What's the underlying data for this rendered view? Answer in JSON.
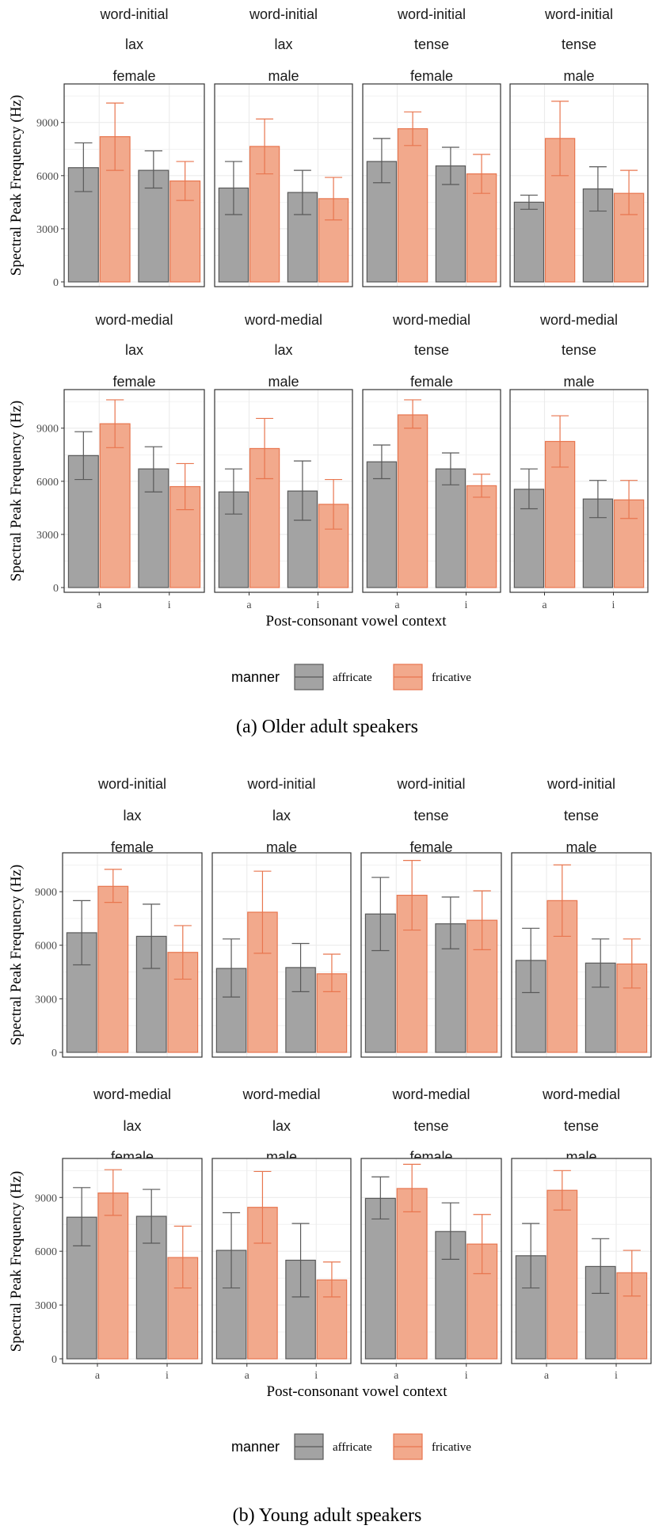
{
  "colors": {
    "affricate_fill": "#a3a3a3",
    "affricate_line": "#595959",
    "fricative_fill": "#f2a98c",
    "fricative_line": "#e8764f",
    "grid": "#ebebeb",
    "panel_border": "#333333"
  },
  "chart_data": [
    {
      "type": "bar",
      "caption": "(a) Older adult speakers",
      "ylabel": "Spectral Peak Frequency (Hz)",
      "xlabel": "Post-consonant vowel context",
      "categories": [
        "a",
        "i"
      ],
      "ylim": [
        0,
        11000
      ],
      "yticks": [
        0,
        3000,
        6000,
        9000
      ],
      "legend": {
        "title": "manner",
        "entries": [
          "affricate",
          "fricative"
        ],
        "position": "bottom"
      },
      "facets": [
        {
          "strip": [
            "word-initial",
            "lax",
            "female"
          ],
          "series": [
            {
              "name": "affricate",
              "values": [
                6450,
                6300
              ],
              "err_low": [
                5100,
                5300
              ],
              "err_high": [
                7850,
                7400
              ]
            },
            {
              "name": "fricative",
              "values": [
                8200,
                5700
              ],
              "err_low": [
                6300,
                4600
              ],
              "err_high": [
                10100,
                6800
              ]
            }
          ]
        },
        {
          "strip": [
            "word-initial",
            "lax",
            "male"
          ],
          "series": [
            {
              "name": "affricate",
              "values": [
                5300,
                5050
              ],
              "err_low": [
                3800,
                3800
              ],
              "err_high": [
                6800,
                6300
              ]
            },
            {
              "name": "fricative",
              "values": [
                7650,
                4700
              ],
              "err_low": [
                6100,
                3500
              ],
              "err_high": [
                9200,
                5900
              ]
            }
          ]
        },
        {
          "strip": [
            "word-initial",
            "tense",
            "female"
          ],
          "series": [
            {
              "name": "affricate",
              "values": [
                6800,
                6550
              ],
              "err_low": [
                5600,
                5500
              ],
              "err_high": [
                8100,
                7600
              ]
            },
            {
              "name": "fricative",
              "values": [
                8650,
                6100
              ],
              "err_low": [
                7700,
                5000
              ],
              "err_high": [
                9600,
                7200
              ]
            }
          ]
        },
        {
          "strip": [
            "word-initial",
            "tense",
            "male"
          ],
          "series": [
            {
              "name": "affricate",
              "values": [
                4500,
                5250
              ],
              "err_low": [
                4100,
                4000
              ],
              "err_high": [
                4900,
                6500
              ]
            },
            {
              "name": "fricative",
              "values": [
                8100,
                5000
              ],
              "err_low": [
                6000,
                3800
              ],
              "err_high": [
                10200,
                6300
              ]
            }
          ]
        },
        {
          "strip": [
            "word-medial",
            "lax",
            "female"
          ],
          "series": [
            {
              "name": "affricate",
              "values": [
                7450,
                6700
              ],
              "err_low": [
                6100,
                5400
              ],
              "err_high": [
                8800,
                7950
              ]
            },
            {
              "name": "fricative",
              "values": [
                9250,
                5700
              ],
              "err_low": [
                7900,
                4400
              ],
              "err_high": [
                10600,
                7000
              ]
            }
          ]
        },
        {
          "strip": [
            "word-medial",
            "lax",
            "male"
          ],
          "series": [
            {
              "name": "affricate",
              "values": [
                5400,
                5450
              ],
              "err_low": [
                4150,
                3800
              ],
              "err_high": [
                6700,
                7150
              ]
            },
            {
              "name": "fricative",
              "values": [
                7850,
                4700
              ],
              "err_low": [
                6150,
                3300
              ],
              "err_high": [
                9550,
                6100
              ]
            }
          ]
        },
        {
          "strip": [
            "word-medial",
            "tense",
            "female"
          ],
          "series": [
            {
              "name": "affricate",
              "values": [
                7100,
                6700
              ],
              "err_low": [
                6150,
                5800
              ],
              "err_high": [
                8050,
                7600
              ]
            },
            {
              "name": "fricative",
              "values": [
                9750,
                5750
              ],
              "err_low": [
                9000,
                5100
              ],
              "err_high": [
                10600,
                6400
              ]
            }
          ]
        },
        {
          "strip": [
            "word-medial",
            "tense",
            "male"
          ],
          "series": [
            {
              "name": "affricate",
              "values": [
                5550,
                5000
              ],
              "err_low": [
                4450,
                3950
              ],
              "err_high": [
                6700,
                6050
              ]
            },
            {
              "name": "fricative",
              "values": [
                8250,
                4950
              ],
              "err_low": [
                6800,
                3900
              ],
              "err_high": [
                9700,
                6050
              ]
            }
          ]
        }
      ]
    },
    {
      "type": "bar",
      "caption": "(b) Young adult speakers",
      "ylabel": "Spectral Peak Frequency (Hz)",
      "xlabel": "Post-consonant vowel context",
      "categories": [
        "a",
        "i"
      ],
      "ylim": [
        0,
        11000
      ],
      "yticks": [
        0,
        3000,
        6000,
        9000
      ],
      "legend": {
        "title": "manner",
        "entries": [
          "affricate",
          "fricative"
        ],
        "position": "bottom"
      },
      "facets": [
        {
          "strip": [
            "word-initial",
            "lax",
            "female"
          ],
          "series": [
            {
              "name": "affricate",
              "values": [
                6700,
                6500
              ],
              "err_low": [
                4900,
                4700
              ],
              "err_high": [
                8500,
                8300
              ]
            },
            {
              "name": "fricative",
              "values": [
                9300,
                5600
              ],
              "err_low": [
                8400,
                4100
              ],
              "err_high": [
                10250,
                7100
              ]
            }
          ]
        },
        {
          "strip": [
            "word-initial",
            "lax",
            "male"
          ],
          "series": [
            {
              "name": "affricate",
              "values": [
                4700,
                4750
              ],
              "err_low": [
                3100,
                3400
              ],
              "err_high": [
                6350,
                6100
              ]
            },
            {
              "name": "fricative",
              "values": [
                7850,
                4400
              ],
              "err_low": [
                5550,
                3400
              ],
              "err_high": [
                10150,
                5500
              ]
            }
          ]
        },
        {
          "strip": [
            "word-initial",
            "tense",
            "female"
          ],
          "series": [
            {
              "name": "affricate",
              "values": [
                7750,
                7200
              ],
              "err_low": [
                5700,
                5800
              ],
              "err_high": [
                9800,
                8700
              ]
            },
            {
              "name": "fricative",
              "values": [
                8800,
                7400
              ],
              "err_low": [
                6850,
                5750
              ],
              "err_high": [
                10750,
                9050
              ]
            }
          ]
        },
        {
          "strip": [
            "word-initial",
            "tense",
            "male"
          ],
          "series": [
            {
              "name": "affricate",
              "values": [
                5150,
                5000
              ],
              "err_low": [
                3350,
                3650
              ],
              "err_high": [
                6950,
                6350
              ]
            },
            {
              "name": "fricative",
              "values": [
                8500,
                4950
              ],
              "err_low": [
                6500,
                3600
              ],
              "err_high": [
                10500,
                6350
              ]
            }
          ]
        },
        {
          "strip": [
            "word-medial",
            "lax",
            "female"
          ],
          "series": [
            {
              "name": "affricate",
              "values": [
                7900,
                7950
              ],
              "err_low": [
                6300,
                6450
              ],
              "err_high": [
                9550,
                9450
              ]
            },
            {
              "name": "fricative",
              "values": [
                9250,
                5650
              ],
              "err_low": [
                8000,
                3950
              ],
              "err_high": [
                10550,
                7400
              ]
            }
          ]
        },
        {
          "strip": [
            "word-medial",
            "lax",
            "male"
          ],
          "series": [
            {
              "name": "affricate",
              "values": [
                6050,
                5500
              ],
              "err_low": [
                3950,
                3450
              ],
              "err_high": [
                8150,
                7550
              ]
            },
            {
              "name": "fricative",
              "values": [
                8450,
                4400
              ],
              "err_low": [
                6450,
                3450
              ],
              "err_high": [
                10450,
                5400
              ]
            }
          ]
        },
        {
          "strip": [
            "word-medial",
            "tense",
            "female"
          ],
          "series": [
            {
              "name": "affricate",
              "values": [
                8950,
                7100
              ],
              "err_low": [
                7800,
                5550
              ],
              "err_high": [
                10150,
                8700
              ]
            },
            {
              "name": "fricative",
              "values": [
                9500,
                6400
              ],
              "err_low": [
                8200,
                4750
              ],
              "err_high": [
                10850,
                8050
              ]
            }
          ]
        },
        {
          "strip": [
            "word-medial",
            "tense",
            "male"
          ],
          "series": [
            {
              "name": "affricate",
              "values": [
                5750,
                5150
              ],
              "err_low": [
                3950,
                3650
              ],
              "err_high": [
                7550,
                6700
              ]
            },
            {
              "name": "fricative",
              "values": [
                9400,
                4800
              ],
              "err_low": [
                8300,
                3500
              ],
              "err_high": [
                10500,
                6050
              ]
            }
          ]
        }
      ]
    }
  ]
}
